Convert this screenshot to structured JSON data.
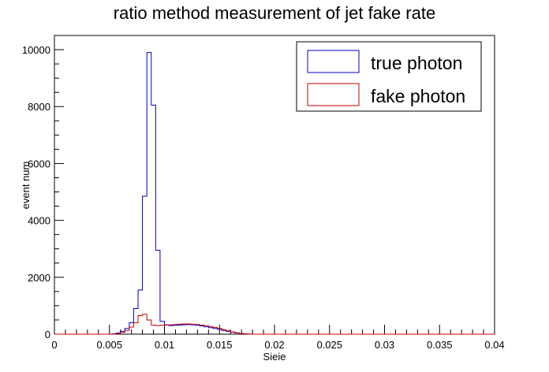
{
  "chart_data": {
    "type": "line",
    "title": "ratio method measurement of jet fake rate",
    "xlabel": "Sieie",
    "ylabel": "event num",
    "xlim": [
      0,
      0.04
    ],
    "ylim": [
      0,
      10500
    ],
    "x_ticks": [
      0,
      0.005,
      0.01,
      0.015,
      0.02,
      0.025,
      0.03,
      0.035,
      0.04
    ],
    "x_tick_labels": [
      "0",
      "0.005",
      "0.01",
      "0.015",
      "0.02",
      "0.025",
      "0.03",
      "0.035",
      "0.04"
    ],
    "y_ticks": [
      0,
      2000,
      4000,
      6000,
      8000,
      10000
    ],
    "y_tick_labels": [
      "0",
      "2000",
      "4000",
      "6000",
      "8000",
      "10000"
    ],
    "legend_position": "top-right",
    "grid": false,
    "bin_width": 0.0004,
    "series": [
      {
        "name": "true photon",
        "color": "#0000cc",
        "bin_start": 0.0052,
        "values": [
          10,
          40,
          100,
          200,
          400,
          900,
          1550,
          4850,
          9900,
          8050,
          2950,
          450,
          330,
          300,
          310,
          320,
          330,
          340,
          330,
          310,
          290,
          260,
          230,
          200,
          170,
          130,
          100,
          70,
          40,
          20,
          10,
          5
        ]
      },
      {
        "name": "fake photon",
        "color": "#cc0000",
        "bin_start": 0.0052,
        "values": [
          5,
          20,
          60,
          130,
          250,
          400,
          650,
          700,
          500,
          320,
          300,
          310,
          320,
          330,
          340,
          350,
          360,
          360,
          350,
          340,
          320,
          300,
          270,
          240,
          200,
          160,
          120,
          80,
          50,
          25,
          10,
          5
        ]
      }
    ]
  }
}
